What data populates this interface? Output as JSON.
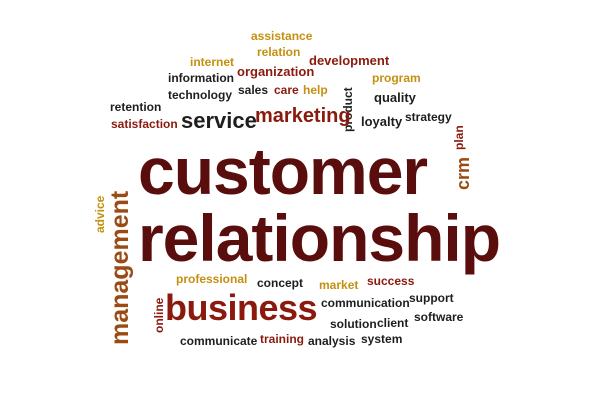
{
  "words": {
    "assistance": "assistance",
    "relation": "relation",
    "internet": "internet",
    "development": "development",
    "information": "information",
    "organization": "organization",
    "program": "program",
    "technology": "technology",
    "sales": "sales",
    "care": "care",
    "help": "help",
    "product": "product",
    "quality": "quality",
    "retention": "retention",
    "satisfaction": "satisfaction",
    "service": "service",
    "marketing": "marketing",
    "loyalty": "loyalty",
    "strategy": "strategy",
    "plan": "plan",
    "crm": "crm",
    "management": "management",
    "advice": "advice",
    "customer": "customer",
    "relationship": "relationship",
    "professional": "professional",
    "concept": "concept",
    "market": "market",
    "success": "success",
    "online": "online",
    "business": "business",
    "communication": "communication",
    "support": "support",
    "solution": "solution",
    "client": "client",
    "software": "software",
    "communicate": "communicate",
    "training": "training",
    "analysis": "analysis",
    "system": "system"
  },
  "colors": {
    "dark": "#1e1e1e",
    "red": "#8b1a0e",
    "gold": "#c4900f",
    "brown": "#9a4a12",
    "maroon": "#5a0d0d"
  }
}
